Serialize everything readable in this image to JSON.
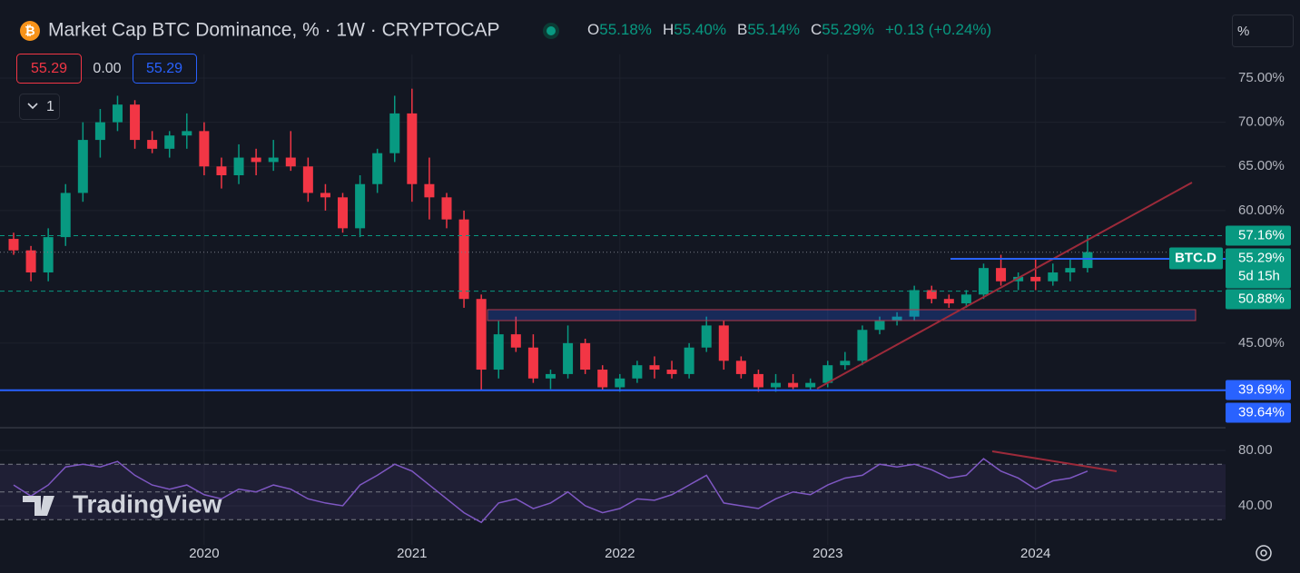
{
  "header": {
    "title": "Market Cap BTC Dominance, % · 1W · CRYPTOCAP",
    "ohlc": [
      {
        "key": "O",
        "value": "55.18%"
      },
      {
        "key": "H",
        "value": "55.40%"
      },
      {
        "key": "B",
        "value": "55.14%"
      },
      {
        "key": "C",
        "value": "55.29%"
      }
    ],
    "change": "+0.13 (+0.24%)",
    "badges": [
      "55.29",
      "0.00",
      "55.29"
    ],
    "collapse": "1",
    "scale_button": "%"
  },
  "watermark": "TradingView",
  "chart_data": [
    {
      "type": "candlestick",
      "categories": [
        null,
        null,
        null,
        null,
        null,
        null,
        null,
        null,
        null,
        null,
        null,
        "2020",
        null,
        null,
        null,
        null,
        null,
        null,
        null,
        null,
        null,
        null,
        null,
        "2021",
        null,
        null,
        null,
        null,
        null,
        null,
        null,
        null,
        null,
        null,
        null,
        "2022",
        null,
        null,
        null,
        null,
        null,
        null,
        null,
        null,
        null,
        null,
        null,
        "2023",
        null,
        null,
        null,
        null,
        null,
        null,
        null,
        null,
        null,
        null,
        null,
        "2024",
        null,
        null,
        null
      ],
      "open": [
        56.8,
        55.5,
        53,
        57,
        62,
        68,
        70,
        72,
        68,
        67,
        68.5,
        69,
        65,
        64,
        66,
        65.5,
        66,
        65,
        62,
        61.5,
        58,
        63,
        66.5,
        71,
        63,
        61.5,
        59,
        50,
        42,
        46,
        44.5,
        41,
        41.5,
        45,
        42,
        40,
        41,
        42.5,
        42,
        41.5,
        44.5,
        47,
        43,
        41.5,
        40,
        40.5,
        40,
        40.5,
        42.5,
        43,
        46.5,
        47.5,
        48,
        51,
        50,
        49.5,
        50.5,
        53.5,
        52,
        52.5,
        52,
        53,
        53.5
      ],
      "high": [
        57.5,
        56,
        58,
        63,
        70,
        71.5,
        73,
        72.5,
        69,
        69,
        71,
        70,
        66,
        67.5,
        67,
        68,
        69,
        66,
        63,
        62,
        64,
        67,
        73,
        73.8,
        66,
        62,
        60,
        50.5,
        47.5,
        48,
        46,
        42,
        47,
        45.5,
        42.5,
        41.5,
        43,
        43.5,
        43,
        45,
        48,
        47.5,
        43.5,
        42,
        41.5,
        41.5,
        41,
        43,
        44,
        47,
        48,
        48.5,
        51.5,
        51.5,
        50.5,
        51,
        54,
        55,
        53,
        54.5,
        54,
        54.5,
        57.2
      ],
      "low": [
        55,
        52,
        52,
        56,
        61,
        66,
        69,
        67,
        66.5,
        66,
        67,
        64,
        62.5,
        63,
        64,
        64.5,
        64.5,
        61,
        60,
        57.5,
        57,
        62,
        65.5,
        61,
        59,
        58,
        49,
        39.7,
        41,
        44,
        40.5,
        39.8,
        41,
        41.5,
        39.7,
        39.5,
        40.5,
        41,
        41,
        41,
        44,
        42,
        41,
        39.5,
        39.5,
        39.8,
        39.6,
        40,
        42,
        42.5,
        46,
        47,
        47.5,
        49.5,
        49,
        49,
        50,
        51.5,
        51,
        51,
        51.5,
        52,
        53
      ],
      "close": [
        55.5,
        53,
        57,
        62,
        68,
        70,
        72,
        68,
        67,
        68.5,
        69,
        65,
        64,
        66,
        65.5,
        66,
        65,
        62,
        61.5,
        58,
        63,
        66.5,
        71,
        63,
        61.5,
        59,
        50,
        42,
        46,
        44.5,
        41,
        41.5,
        45,
        42,
        40,
        41,
        42.5,
        42,
        41.5,
        44.5,
        47,
        43,
        41.5,
        40,
        40.5,
        40,
        40.5,
        42.5,
        43,
        46.5,
        47.5,
        48,
        51,
        50,
        49.5,
        50.5,
        53.5,
        52,
        52.5,
        52,
        53,
        53.5,
        55.3
      ],
      "up_color": "#089981",
      "down_color": "#f23645",
      "ylim": [
        35.53,
        77.67
      ],
      "yticks": [
        {
          "value": 75,
          "label": "75.00%"
        },
        {
          "value": 70,
          "label": "70.00%"
        },
        {
          "value": 65,
          "label": "65.00%"
        },
        {
          "value": 60,
          "label": "60.00%"
        },
        {
          "value": 45,
          "label": "45.00%"
        }
      ],
      "grid": true,
      "symbol": "BTC.D",
      "countdown": "5d 15h",
      "levels": [
        {
          "value": 57.16,
          "label": "57.16%",
          "color": "#089981",
          "style": "dashed"
        },
        {
          "value": 55.29,
          "label": "55.29%",
          "color": "#089981",
          "style": "dotted"
        },
        {
          "value": 50.88,
          "label": "50.88%",
          "color": "#089981",
          "style": "dashed"
        },
        {
          "value": 39.69,
          "label": "39.69%",
          "color": "#2962ff",
          "style": "solid"
        },
        {
          "value": 39.64,
          "label": "39.64%",
          "color": "#2962ff",
          "style": "solid"
        }
      ]
    },
    {
      "type": "line",
      "values": [
        55,
        47,
        55,
        68,
        70,
        68,
        72,
        62,
        55,
        52,
        55,
        48,
        45,
        52,
        50,
        55,
        52,
        45,
        42,
        40,
        55,
        62,
        70,
        65,
        55,
        45,
        35,
        28,
        42,
        45,
        38,
        42,
        50,
        40,
        35,
        38,
        45,
        44,
        48,
        55,
        62,
        42,
        40,
        38,
        45,
        50,
        48,
        55,
        60,
        62,
        70,
        68,
        70,
        66,
        60,
        62,
        74,
        65,
        60,
        52,
        58,
        60,
        65
      ],
      "color": "#7e57c2",
      "ylim": [
        11.8,
        95.7
      ],
      "yticks": [
        {
          "value": 80,
          "label": "80.00"
        },
        {
          "value": 40,
          "label": "40.00"
        }
      ],
      "levels": [
        70,
        50,
        30
      ]
    }
  ]
}
